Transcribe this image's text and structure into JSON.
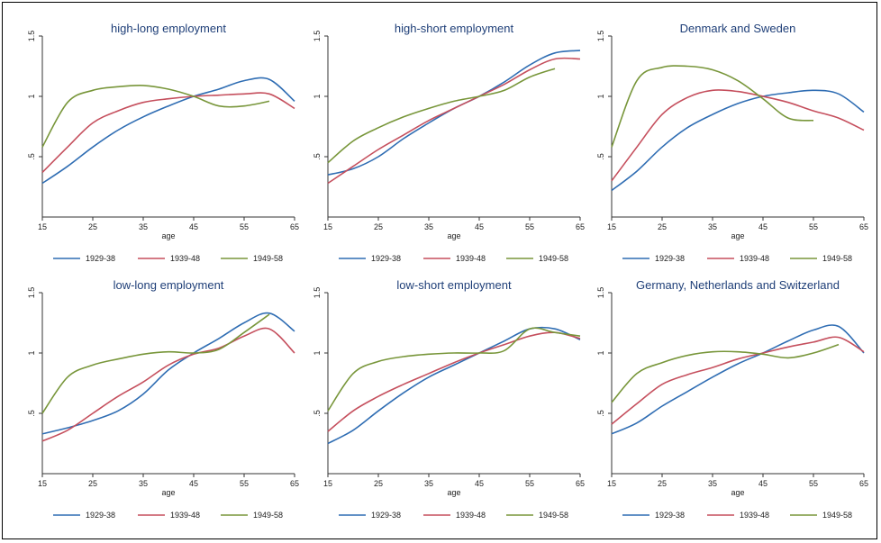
{
  "chart_data": [
    {
      "type": "line",
      "title": "high-long employment",
      "xlabel": "age",
      "ylabel": "",
      "xlim": [
        15,
        65
      ],
      "ylim": [
        0,
        1.5
      ],
      "xticks": [
        "15",
        "25",
        "35",
        "45",
        "55",
        "65"
      ],
      "yticks": [
        ".5",
        "1",
        "1.5"
      ],
      "x": [
        15,
        20,
        25,
        30,
        35,
        40,
        45,
        50,
        55,
        60,
        65
      ],
      "series": [
        {
          "name": "1929-38",
          "color": "#2f6db3",
          "values": [
            0.28,
            0.42,
            0.58,
            0.72,
            0.83,
            0.92,
            1.0,
            1.06,
            1.13,
            1.14,
            0.96
          ]
        },
        {
          "name": "1939-48",
          "color": "#c54f5d",
          "values": [
            0.37,
            0.58,
            0.78,
            0.88,
            0.95,
            0.98,
            1.0,
            1.01,
            1.02,
            1.02,
            0.9
          ]
        },
        {
          "name": "1949-58",
          "color": "#78963a",
          "values": [
            0.58,
            0.95,
            1.05,
            1.08,
            1.09,
            1.06,
            1.0,
            0.92,
            0.92,
            0.96,
            null
          ]
        }
      ],
      "legend_position": "bottom"
    },
    {
      "type": "line",
      "title": "high-short employment",
      "xlabel": "age",
      "ylabel": "",
      "xlim": [
        15,
        65
      ],
      "ylim": [
        0,
        1.5
      ],
      "xticks": [
        "15",
        "25",
        "35",
        "45",
        "55",
        "65"
      ],
      "yticks": [
        ".5",
        "1",
        "1.5"
      ],
      "x": [
        15,
        20,
        25,
        30,
        35,
        40,
        45,
        50,
        55,
        60,
        65
      ],
      "series": [
        {
          "name": "1929-38",
          "color": "#2f6db3",
          "values": [
            0.35,
            0.4,
            0.5,
            0.65,
            0.78,
            0.9,
            1.0,
            1.12,
            1.26,
            1.36,
            1.38
          ]
        },
        {
          "name": "1939-48",
          "color": "#c54f5d",
          "values": [
            0.28,
            0.42,
            0.56,
            0.68,
            0.8,
            0.9,
            1.0,
            1.1,
            1.22,
            1.31,
            1.31
          ]
        },
        {
          "name": "1949-58",
          "color": "#78963a",
          "values": [
            0.45,
            0.63,
            0.74,
            0.83,
            0.9,
            0.96,
            1.0,
            1.05,
            1.16,
            1.23,
            null
          ]
        }
      ],
      "legend_position": "bottom"
    },
    {
      "type": "line",
      "title": "Denmark and Sweden",
      "xlabel": "age",
      "ylabel": "",
      "xlim": [
        15,
        65
      ],
      "ylim": [
        0,
        1.5
      ],
      "xticks": [
        "15",
        "25",
        "35",
        "45",
        "55",
        "65"
      ],
      "yticks": [
        ".5",
        "1",
        "1.5"
      ],
      "x": [
        15,
        20,
        25,
        30,
        35,
        40,
        45,
        50,
        55,
        60,
        65
      ],
      "series": [
        {
          "name": "1929-38",
          "color": "#2f6db3",
          "values": [
            0.22,
            0.38,
            0.58,
            0.74,
            0.85,
            0.94,
            1.0,
            1.03,
            1.05,
            1.02,
            0.87
          ]
        },
        {
          "name": "1939-48",
          "color": "#c54f5d",
          "values": [
            0.3,
            0.58,
            0.85,
            0.99,
            1.05,
            1.04,
            1.0,
            0.95,
            0.88,
            0.82,
            0.72
          ]
        },
        {
          "name": "1949-58",
          "color": "#78963a",
          "values": [
            0.58,
            1.13,
            1.24,
            1.25,
            1.22,
            1.13,
            0.98,
            0.82,
            0.8,
            null,
            null
          ]
        }
      ],
      "legend_position": "bottom"
    },
    {
      "type": "line",
      "title": "low-long employment",
      "xlabel": "age",
      "ylabel": "",
      "xlim": [
        15,
        65
      ],
      "ylim": [
        0,
        1.5
      ],
      "xticks": [
        "15",
        "25",
        "35",
        "45",
        "55",
        "65"
      ],
      "yticks": [
        ".5",
        "1",
        "1.5"
      ],
      "x": [
        15,
        20,
        25,
        30,
        35,
        40,
        45,
        50,
        55,
        60,
        65
      ],
      "series": [
        {
          "name": "1929-38",
          "color": "#2f6db3",
          "values": [
            0.33,
            0.38,
            0.44,
            0.52,
            0.66,
            0.86,
            1.0,
            1.12,
            1.25,
            1.33,
            1.18
          ]
        },
        {
          "name": "1939-48",
          "color": "#c54f5d",
          "values": [
            0.27,
            0.36,
            0.5,
            0.64,
            0.76,
            0.9,
            0.99,
            1.04,
            1.14,
            1.2,
            1.0
          ]
        },
        {
          "name": "1949-58",
          "color": "#78963a",
          "values": [
            0.5,
            0.8,
            0.9,
            0.95,
            0.99,
            1.01,
            1.0,
            1.03,
            1.17,
            1.32,
            null
          ]
        }
      ],
      "legend_position": "bottom"
    },
    {
      "type": "line",
      "title": "low-short employment",
      "xlabel": "age",
      "ylabel": "",
      "xlim": [
        15,
        65
      ],
      "ylim": [
        0,
        1.5
      ],
      "xticks": [
        "15",
        "25",
        "35",
        "45",
        "55",
        "65"
      ],
      "yticks": [
        ".5",
        "1",
        "1.5"
      ],
      "x": [
        15,
        20,
        25,
        30,
        35,
        40,
        45,
        50,
        55,
        60,
        65
      ],
      "series": [
        {
          "name": "1929-38",
          "color": "#2f6db3",
          "values": [
            0.25,
            0.36,
            0.52,
            0.67,
            0.8,
            0.9,
            1.0,
            1.1,
            1.2,
            1.2,
            1.11
          ]
        },
        {
          "name": "1939-48",
          "color": "#c54f5d",
          "values": [
            0.35,
            0.52,
            0.64,
            0.74,
            0.83,
            0.92,
            1.0,
            1.07,
            1.14,
            1.17,
            1.12
          ]
        },
        {
          "name": "1949-58",
          "color": "#78963a",
          "values": [
            0.52,
            0.83,
            0.93,
            0.97,
            0.99,
            1.0,
            1.0,
            1.02,
            1.2,
            1.17,
            1.14
          ]
        }
      ],
      "legend_position": "bottom"
    },
    {
      "type": "line",
      "title": "Germany, Netherlands and Switzerland",
      "xlabel": "age",
      "ylabel": "",
      "xlim": [
        15,
        65
      ],
      "ylim": [
        0,
        1.5
      ],
      "xticks": [
        "15",
        "25",
        "35",
        "45",
        "55",
        "65"
      ],
      "yticks": [
        ".5",
        "1",
        "1.5"
      ],
      "x": [
        15,
        20,
        25,
        30,
        35,
        40,
        45,
        50,
        55,
        60,
        65
      ],
      "series": [
        {
          "name": "1929-38",
          "color": "#2f6db3",
          "values": [
            0.33,
            0.42,
            0.56,
            0.68,
            0.8,
            0.91,
            1.0,
            1.1,
            1.19,
            1.22,
            1.0
          ]
        },
        {
          "name": "1939-48",
          "color": "#c54f5d",
          "values": [
            0.41,
            0.58,
            0.74,
            0.82,
            0.88,
            0.95,
            1.0,
            1.05,
            1.09,
            1.13,
            1.01
          ]
        },
        {
          "name": "1949-58",
          "color": "#78963a",
          "values": [
            0.59,
            0.83,
            0.92,
            0.98,
            1.01,
            1.01,
            0.99,
            0.96,
            1.0,
            1.07,
            null
          ]
        }
      ],
      "legend_position": "bottom"
    }
  ]
}
